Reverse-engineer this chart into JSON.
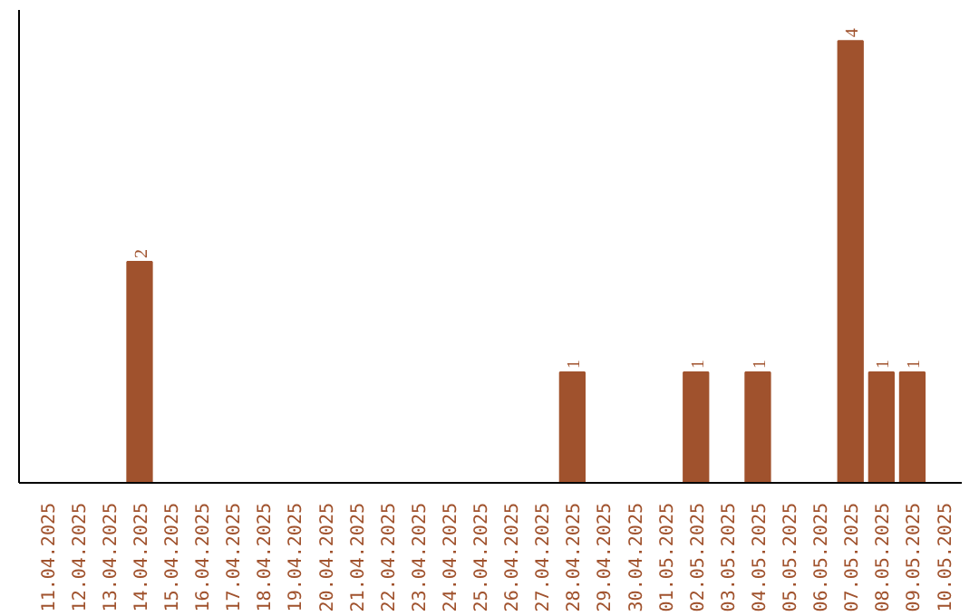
{
  "chart_data": {
    "type": "bar",
    "categories": [
      "11.04.2025",
      "12.04.2025",
      "13.04.2025",
      "14.04.2025",
      "15.04.2025",
      "16.04.2025",
      "17.04.2025",
      "18.04.2025",
      "19.04.2025",
      "20.04.2025",
      "21.04.2025",
      "22.04.2025",
      "23.04.2025",
      "24.04.2025",
      "25.04.2025",
      "26.04.2025",
      "27.04.2025",
      "28.04.2025",
      "29.04.2025",
      "30.04.2025",
      "01.05.2025",
      "02.05.2025",
      "03.05.2025",
      "04.05.2025",
      "05.05.2025",
      "06.05.2025",
      "07.05.2025",
      "08.05.2025",
      "09.05.2025",
      "10.05.2025"
    ],
    "values": [
      0,
      0,
      0,
      2,
      0,
      0,
      0,
      0,
      0,
      0,
      0,
      0,
      0,
      0,
      0,
      0,
      0,
      1,
      0,
      0,
      0,
      1,
      0,
      1,
      0,
      0,
      4,
      1,
      1,
      0
    ],
    "value_labels": [
      null,
      null,
      null,
      "2",
      null,
      null,
      null,
      null,
      null,
      null,
      null,
      null,
      null,
      null,
      null,
      null,
      null,
      "1",
      null,
      null,
      null,
      "1",
      null,
      "1",
      null,
      null,
      "4",
      "1",
      "1",
      null
    ],
    "color": "#a0522d",
    "tick_labels": "x",
    "grid": false
  }
}
